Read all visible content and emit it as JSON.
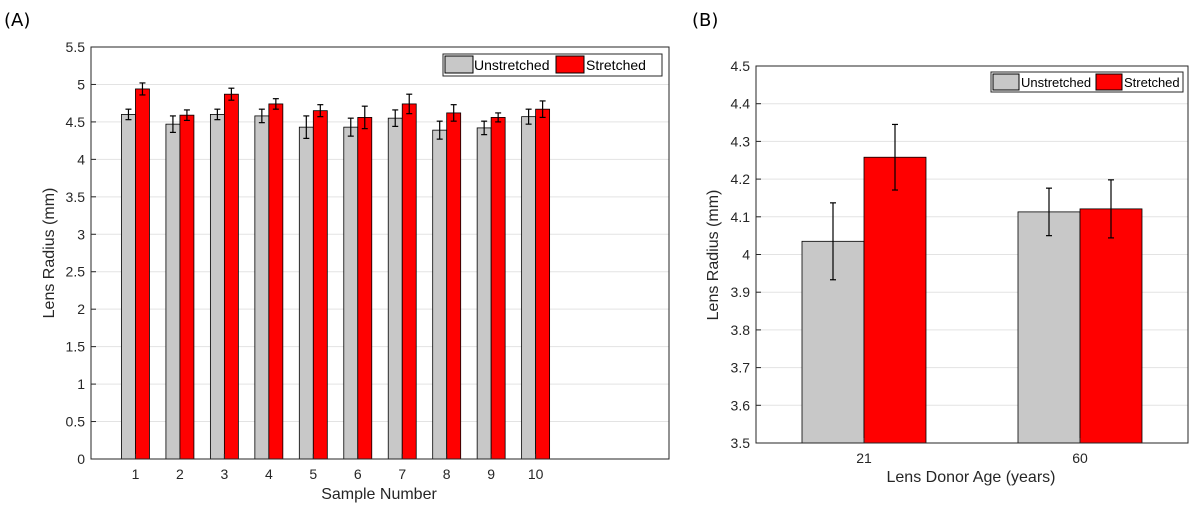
{
  "chart_data": [
    {
      "type": "bar",
      "panel_label": "(A)",
      "xlabel": "Sample Number",
      "ylabel": "Lens Radius (mm)",
      "ylim": [
        0,
        5.5
      ],
      "yticks": [
        "0",
        "0.5",
        "1",
        "1.5",
        "2",
        "2.5",
        "3",
        "3.5",
        "4",
        "4.5",
        "5",
        "5.5"
      ],
      "xlim": [
        0,
        13
      ],
      "categories": [
        "1",
        "2",
        "3",
        "4",
        "5",
        "6",
        "7",
        "8",
        "9",
        "10"
      ],
      "grid": true,
      "legend_position": "top-right",
      "series": [
        {
          "name": "Unstretched",
          "color": "#c8c8c8",
          "values": [
            4.6,
            4.47,
            4.6,
            4.58,
            4.43,
            4.43,
            4.55,
            4.39,
            4.42,
            4.57
          ],
          "errors": [
            0.07,
            0.11,
            0.07,
            0.09,
            0.15,
            0.12,
            0.11,
            0.12,
            0.09,
            0.1
          ]
        },
        {
          "name": "Stretched",
          "color": "#ff0000",
          "values": [
            4.94,
            4.59,
            4.87,
            4.74,
            4.65,
            4.56,
            4.74,
            4.62,
            4.56,
            4.67
          ],
          "errors": [
            0.08,
            0.07,
            0.08,
            0.07,
            0.08,
            0.15,
            0.13,
            0.11,
            0.06,
            0.11
          ]
        }
      ]
    },
    {
      "type": "bar",
      "panel_label": "(B)",
      "xlabel": "Lens Donor Age (years)",
      "ylabel": "Lens Radius (mm)",
      "ylim": [
        3.5,
        4.5
      ],
      "yticks": [
        "3.5",
        "3.6",
        "3.7",
        "3.8",
        "3.9",
        "4",
        "4.1",
        "4.2",
        "4.3",
        "4.4",
        "4.5"
      ],
      "categories": [
        "21",
        "60"
      ],
      "grid": true,
      "legend_position": "top-right",
      "series": [
        {
          "name": "Unstretched",
          "color": "#c8c8c8",
          "values": [
            4.035,
            4.113
          ],
          "errors": [
            0.102,
            0.063
          ]
        },
        {
          "name": "Stretched",
          "color": "#ff0000",
          "values": [
            4.258,
            4.121
          ],
          "errors": [
            0.087,
            0.077
          ]
        }
      ]
    }
  ]
}
